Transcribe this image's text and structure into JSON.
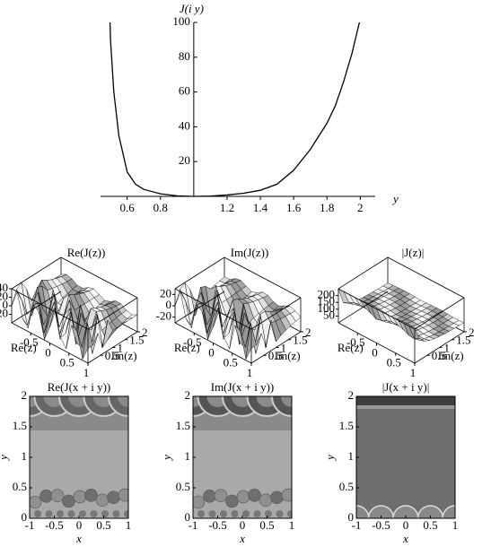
{
  "chart_data": [
    {
      "type": "line",
      "ylabel": "J(i y)",
      "xlabel": "y",
      "color": "#000000",
      "x": [
        0.497,
        0.5,
        0.52,
        0.55,
        0.6,
        0.65,
        0.7,
        0.8,
        0.9,
        1,
        1.1,
        1.2,
        1.3,
        1.4,
        1.5,
        1.6,
        1.7,
        1.8,
        1.85,
        1.9,
        1.95,
        1.995
      ],
      "values": [
        100,
        90,
        60,
        35,
        14,
        7,
        4,
        1.5,
        0.3,
        0,
        0.2,
        0.8,
        1.8,
        3.5,
        7,
        15,
        27,
        42,
        52,
        66,
        82,
        100
      ],
      "xlim": [
        0.44,
        2.09
      ],
      "ylim": [
        0,
        100
      ],
      "xticks": [
        0.6,
        0.8,
        1.2,
        1.4,
        1.6,
        1.8,
        2
      ],
      "yticks": [
        20,
        40,
        60,
        80,
        100
      ]
    },
    {
      "type": "surface",
      "title": "Re(J(z))",
      "xlabel": "Re(z)",
      "ylabel": "Im(z)",
      "xlim": [
        -1,
        1
      ],
      "ylim": [
        0,
        2
      ],
      "zlim": [
        -40,
        40
      ],
      "xticks": [
        -0.5,
        0,
        0.5,
        1
      ],
      "yticks": [
        0.5,
        1,
        1.5,
        2
      ],
      "zticks": [
        -20,
        0,
        20,
        40
      ]
    },
    {
      "type": "surface",
      "title": "Im(J(z))",
      "xlabel": "Re(z)",
      "ylabel": "Im(z)",
      "xlim": [
        -1,
        1
      ],
      "ylim": [
        0,
        2
      ],
      "zlim": [
        -30,
        30
      ],
      "xticks": [
        -0.5,
        0,
        0.5,
        1
      ],
      "yticks": [
        0.5,
        1,
        1.5,
        2
      ],
      "zticks": [
        -20,
        0,
        20
      ]
    },
    {
      "type": "surface",
      "title": "|J(z)|",
      "xlabel": "Re(z)",
      "ylabel": "Im(z)",
      "xlim": [
        -1,
        1
      ],
      "ylim": [
        0,
        2
      ],
      "zlim": [
        0,
        250
      ],
      "xticks": [
        -0.5,
        0,
        0.5,
        1
      ],
      "yticks": [
        0.5,
        1,
        1.5,
        2
      ],
      "zticks": [
        50,
        100,
        150,
        200
      ]
    },
    {
      "type": "density",
      "title": "Re(J(x + i y))",
      "xlabel": "x",
      "ylabel": "y",
      "xlim": [
        -1,
        1
      ],
      "ylim": [
        0,
        2
      ],
      "xticks": [
        -1,
        -0.5,
        0,
        0.5,
        1
      ],
      "yticks": [
        0,
        0.5,
        1,
        1.5,
        2
      ]
    },
    {
      "type": "density",
      "title": "Im(J(x + i y))",
      "xlabel": "x",
      "ylabel": "y",
      "xlim": [
        -1,
        1
      ],
      "ylim": [
        0,
        2
      ],
      "xticks": [
        -1,
        -0.5,
        0,
        0.5,
        1
      ],
      "yticks": [
        0,
        0.5,
        1,
        1.5,
        2
      ]
    },
    {
      "type": "density",
      "title": "|J(x + i y)|",
      "xlabel": "x",
      "ylabel": "y",
      "xlim": [
        -1,
        1
      ],
      "ylim": [
        0,
        2
      ],
      "xticks": [
        -1,
        -0.5,
        0,
        0.5,
        1
      ],
      "yticks": [
        0,
        0.5,
        1,
        1.5,
        2
      ]
    }
  ]
}
